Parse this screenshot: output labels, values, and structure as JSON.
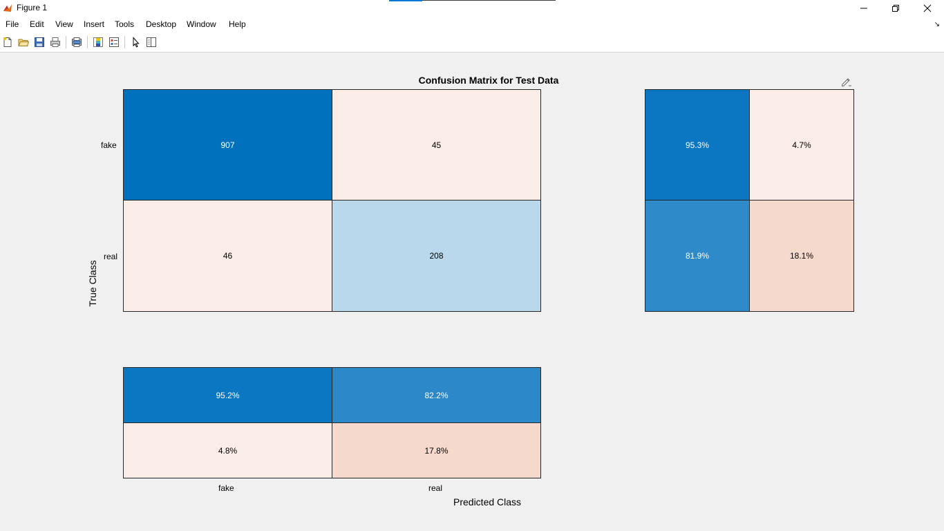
{
  "window": {
    "title": "Figure 1",
    "minimize_icon": "minimize-icon",
    "maximize_icon": "restore-icon",
    "close_icon": "close-icon"
  },
  "menu": {
    "items": [
      "File",
      "Edit",
      "View",
      "Insert",
      "Tools",
      "Desktop",
      "Window",
      "Help"
    ]
  },
  "toolbar": {
    "icons": [
      "new-figure-icon",
      "open-file-icon",
      "save-icon",
      "print-icon",
      "print-preview-icon",
      "colorbar-icon",
      "legend-icon",
      "pointer-icon",
      "property-inspector-icon"
    ]
  },
  "chart_data": {
    "type": "heatmap",
    "title": "Confusion Matrix for Test Data",
    "xlabel": "Predicted Class",
    "ylabel": "True Class",
    "classes": [
      "fake",
      "real"
    ],
    "matrix": [
      [
        907,
        45
      ],
      [
        46,
        208
      ]
    ],
    "row_summary": [
      [
        "95.3%",
        "4.7%"
      ],
      [
        "81.9%",
        "18.1%"
      ]
    ],
    "column_summary": [
      [
        "95.2%",
        "82.2%"
      ],
      [
        "4.8%",
        "17.8%"
      ]
    ],
    "colors": {
      "main": [
        [
          "#0072bd",
          "#faece6"
        ],
        [
          "#faece6",
          "#bad8ec"
        ]
      ],
      "row_summary": [
        [
          "#0b76c1",
          "#faece6"
        ],
        [
          "#2f8ac9",
          "#f6d9cd"
        ]
      ],
      "column_summary": [
        [
          "#0b76c1",
          "#2c88c8"
        ],
        [
          "#faece6",
          "#f6d9cd"
        ]
      ],
      "text": [
        [
          "#ffffff",
          "#000000"
        ],
        [
          "#000000",
          "#000000"
        ]
      ],
      "row_text": [
        [
          "#ffffff",
          "#000000"
        ],
        [
          "#ffffff",
          "#000000"
        ]
      ],
      "col_text": [
        [
          "#ffffff",
          "#ffffff"
        ],
        [
          "#000000",
          "#000000"
        ]
      ]
    }
  }
}
